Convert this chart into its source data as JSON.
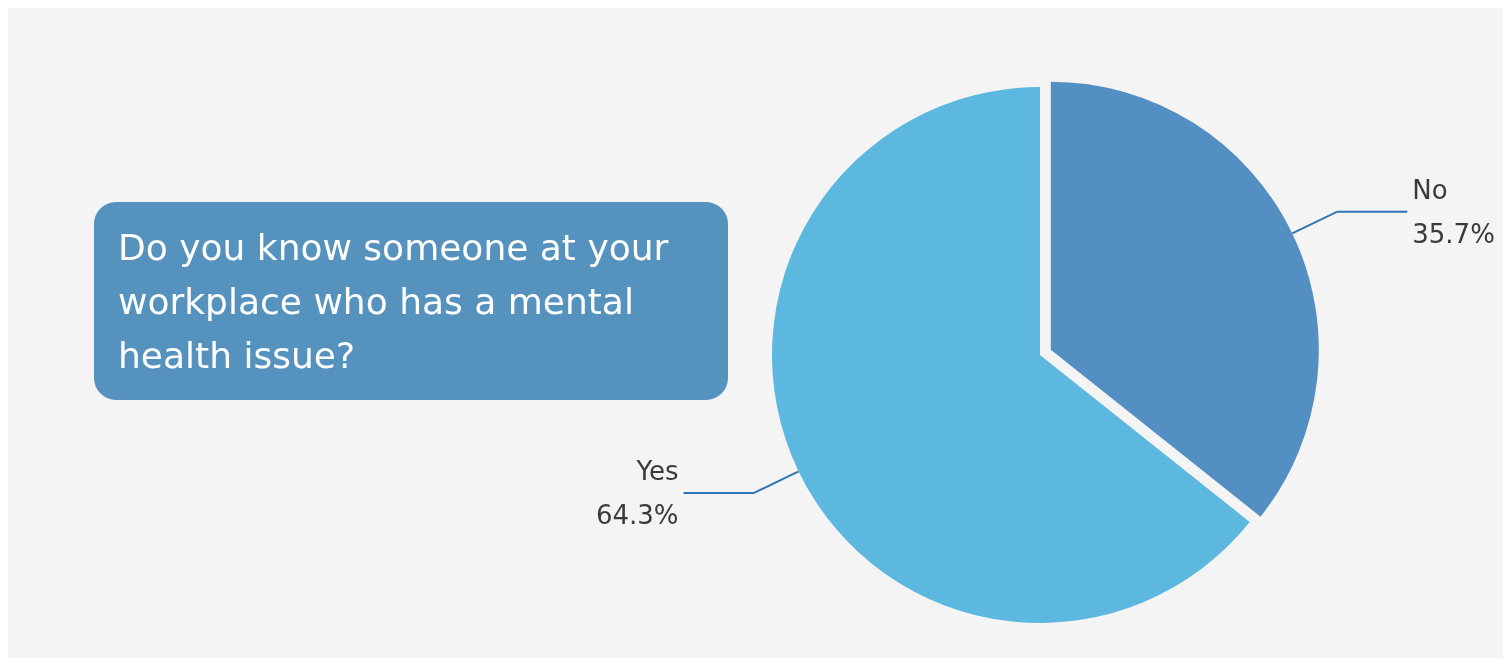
{
  "chart_data": {
    "type": "pie",
    "title": "Do you know someone at your workplace who has a mental health issue?",
    "categories": [
      "No",
      "Yes"
    ],
    "values": [
      35.7,
      64.3
    ],
    "colors": [
      "#538fc3",
      "#5db8e0"
    ],
    "value_labels": [
      "35.7%",
      "64.3%"
    ],
    "legend": false
  }
}
